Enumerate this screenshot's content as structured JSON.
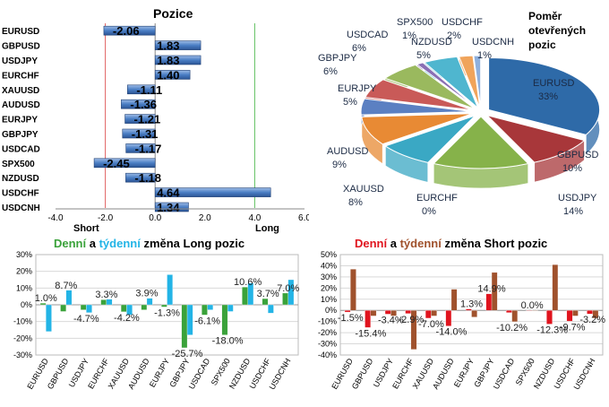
{
  "colors": {
    "grid_red": "#e06060",
    "grid_green": "#60c060",
    "long_green": "#3aa23a",
    "long_cyan": "#23b4e6",
    "short_red": "#e0141e",
    "short_brown": "#a0522d",
    "bar_blue": "#3d6fb6"
  },
  "chart_data": [
    {
      "type": "bar",
      "orientation": "horizontal",
      "title": "Pozice",
      "categories": [
        "EURUSD",
        "GBPUSD",
        "USDJPY",
        "EURCHF",
        "XAUUSD",
        "AUDUSD",
        "EURJPY",
        "GBPJPY",
        "USDCAD",
        "SPX500",
        "NZDUSD",
        "USDCHF",
        "USDCNH"
      ],
      "values": [
        -2.06,
        1.83,
        1.83,
        1.4,
        -1.11,
        -1.36,
        -1.21,
        -1.31,
        -1.17,
        -2.45,
        -1.18,
        4.64,
        1.34
      ],
      "value_labels": [
        "-2.06",
        "1.83",
        "1.83",
        "1.40",
        "-1.11",
        "-1.36",
        "-1.21",
        "-1.31",
        "-1.17",
        "-2.45",
        "-1.18",
        "4.64",
        "1.34"
      ],
      "xlim": [
        -4.0,
        6.0
      ],
      "x_ticks": [
        "-4.0",
        "-2.0",
        "0.0",
        "2.0",
        "4.0",
        "6.0"
      ],
      "short_label": "Short",
      "long_label": "Long"
    },
    {
      "type": "pie",
      "title_lines": [
        "Poměr",
        "otevřených",
        "pozic"
      ],
      "slices": [
        {
          "name": "EURUSD",
          "percent": 33
        },
        {
          "name": "GBPUSD",
          "percent": 10
        },
        {
          "name": "USDJPY",
          "percent": 14
        },
        {
          "name": "EURCHF",
          "percent": 0
        },
        {
          "name": "XAUUSD",
          "percent": 8
        },
        {
          "name": "AUDUSD",
          "percent": 9
        },
        {
          "name": "EURJPY",
          "percent": 5
        },
        {
          "name": "GBPJPY",
          "percent": 6
        },
        {
          "name": "USDCAD",
          "percent": 6
        },
        {
          "name": "SPX500",
          "percent": 1
        },
        {
          "name": "NZDUSD",
          "percent": 5
        },
        {
          "name": "USDCHF",
          "percent": 2
        },
        {
          "name": "USDCNH",
          "percent": 1
        }
      ],
      "labels": [
        {
          "name": "EURUSD",
          "text": "33%"
        },
        {
          "name": "GBPUSD",
          "text": "10%"
        },
        {
          "name": "USDJPY",
          "text": "14%"
        },
        {
          "name": "EURCHF",
          "text": "0%"
        },
        {
          "name": "XAUUSD",
          "text": "8%"
        },
        {
          "name": "AUDUSD",
          "text": "9%"
        },
        {
          "name": "EURJPY",
          "text": "5%"
        },
        {
          "name": "GBPJPY",
          "text": "6%"
        },
        {
          "name": "USDCAD",
          "text": "6%"
        },
        {
          "name": "SPX500",
          "text": "1%"
        },
        {
          "name": "NZDUSD",
          "text": "5%"
        },
        {
          "name": "USDCHF",
          "text": "2%"
        },
        {
          "name": "USDCNH",
          "text": "1%"
        }
      ]
    },
    {
      "type": "bar",
      "title_parts": [
        "Denní",
        " a ",
        "týdenní",
        " změna Long pozic"
      ],
      "categories": [
        "EURUSD",
        "GBPUSD",
        "USDJPY",
        "EURCHF",
        "XAUUSD",
        "AUDUSD",
        "EURJPY",
        "GBPJPY",
        "USDCAD",
        "SPX500",
        "NZDUSD",
        "USDCHF",
        "USDCNH"
      ],
      "series": [
        {
          "values": [
            1.0,
            -4.0,
            -3.0,
            3.0,
            -4.2,
            -3.0,
            -1.3,
            -25.7,
            -6.1,
            -18.0,
            10.6,
            3.7,
            7.0
          ]
        },
        {
          "values": [
            -16.0,
            8.7,
            -4.7,
            3.3,
            -6.0,
            3.9,
            18.0,
            -18.0,
            -3.0,
            -4.0,
            13.0,
            -5.0,
            15.0
          ]
        }
      ],
      "data_labels": [
        {
          "cat": "EURUSD",
          "value": 1.0,
          "text": "1.0%"
        },
        {
          "cat": "GBPUSD",
          "value": 8.7,
          "text": "8.7%"
        },
        {
          "cat": "USDJPY",
          "value": -4.7,
          "text": "-4.7%"
        },
        {
          "cat": "EURCHF",
          "value": 3.3,
          "text": "3.3%"
        },
        {
          "cat": "XAUUSD",
          "value": -4.2,
          "text": "-4.2%"
        },
        {
          "cat": "AUDUSD",
          "value": 3.9,
          "text": "3.9%"
        },
        {
          "cat": "EURJPY",
          "value": -1.3,
          "text": "-1.3%"
        },
        {
          "cat": "GBPJPY",
          "value": -25.7,
          "text": "-25.7%"
        },
        {
          "cat": "USDCAD",
          "value": -6.1,
          "text": "-6.1%"
        },
        {
          "cat": "SPX500",
          "value": -18.0,
          "text": "-18.0%"
        },
        {
          "cat": "NZDUSD",
          "value": 10.6,
          "text": "10.6%"
        },
        {
          "cat": "USDCHF",
          "value": 3.7,
          "text": "3.7%"
        },
        {
          "cat": "USDCNH",
          "value": 7.0,
          "text": "7.0%"
        }
      ],
      "ylim": [
        -30,
        20
      ],
      "y_ticks": [
        "-30%",
        "-20%",
        "-10%",
        "0%",
        "10%",
        "20%",
        "30%"
      ],
      "grid": true
    },
    {
      "type": "bar",
      "title_parts": [
        "Denní",
        " a ",
        "týdenní",
        " změna Short pozic"
      ],
      "categories": [
        "EURUSD",
        "GBPUSD",
        "USDJPY",
        "EURCHF",
        "XAUUSD",
        "AUDUSD",
        "EURJPY",
        "GBPJPY",
        "USDCAD",
        "SPX500",
        "NZDUSD",
        "USDCHF",
        "USDCNH"
      ],
      "series": [
        {
          "values": [
            -1.5,
            -15.4,
            -3.4,
            -2.9,
            -7.0,
            -14.0,
            1.3,
            14.9,
            -2.0,
            0.0,
            -12.3,
            -9.7,
            -3.2
          ]
        },
        {
          "values": [
            37.0,
            -5.0,
            -5.0,
            -35.0,
            -5.0,
            19.0,
            -6.0,
            34.0,
            -10.2,
            0.0,
            41.0,
            -5.0,
            -7.0
          ]
        }
      ],
      "data_labels": [
        {
          "cat": "EURUSD",
          "value": -1.5,
          "text": "-1.5%"
        },
        {
          "cat": "GBPUSD",
          "value": -15.4,
          "text": "-15.4%"
        },
        {
          "cat": "USDJPY",
          "value": -3.4,
          "text": "-3.4%"
        },
        {
          "cat": "EURCHF",
          "value": -2.9,
          "text": "-2.9%"
        },
        {
          "cat": "XAUUSD",
          "value": -7.0,
          "text": "-7.0%"
        },
        {
          "cat": "AUDUSD",
          "value": -14.0,
          "text": "-14.0%"
        },
        {
          "cat": "EURJPY",
          "value": 1.3,
          "text": "1.3%"
        },
        {
          "cat": "GBPJPY",
          "value": 14.9,
          "text": "14.9%"
        },
        {
          "cat": "USDCAD",
          "value": -10.2,
          "text": "-10.2%"
        },
        {
          "cat": "SPX500",
          "value": 0.0,
          "text": "0.0%"
        },
        {
          "cat": "NZDUSD",
          "value": -12.3,
          "text": "-12.3%"
        },
        {
          "cat": "USDCHF",
          "value": -9.7,
          "text": "-9.7%"
        },
        {
          "cat": "USDCNH",
          "value": -3.2,
          "text": "-3.2%"
        }
      ],
      "ylim": [
        -40,
        50
      ],
      "y_ticks": [
        "-40%",
        "-30%",
        "-20%",
        "-10%",
        "0%",
        "10%",
        "20%",
        "30%",
        "40%",
        "50%"
      ],
      "grid": true
    }
  ]
}
